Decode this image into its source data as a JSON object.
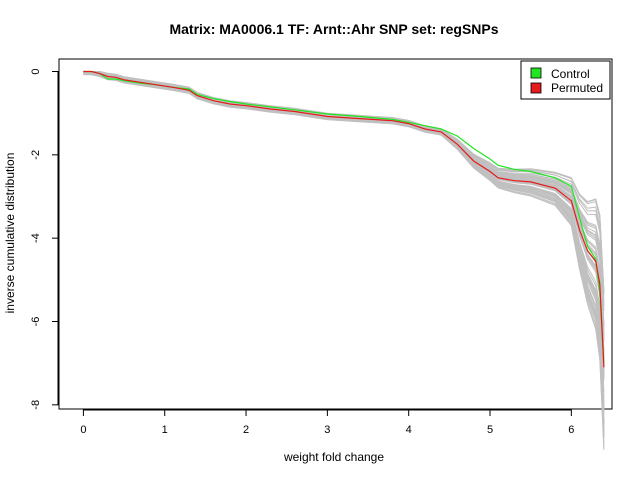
{
  "chart_data": {
    "type": "line",
    "title": "Matrix: MA0006.1 TF: Arnt::Ahr SNP set: regSNPs",
    "xlabel": "weight fold change",
    "ylabel": "inverse cumulative distribution",
    "xlim": [
      -0.3,
      6.5
    ],
    "ylim": [
      -8.1,
      0.3
    ],
    "x_ticks": [
      0,
      1,
      2,
      3,
      4,
      5,
      6
    ],
    "y_ticks": [
      0,
      -2,
      -4,
      -6,
      -8
    ],
    "grid": false,
    "legend": {
      "placement": "top-right",
      "entries": [
        {
          "label": "Control",
          "color": "#22e522"
        },
        {
          "label": "Permuted",
          "color": "#e61a1a"
        }
      ]
    },
    "background_series": {
      "color": "#c0c0c0",
      "count": 60,
      "description_values": "per-run permuted curves spanning the gray band"
    },
    "series": [
      {
        "name": "Control",
        "color": "#22e522",
        "x": [
          0,
          0.1,
          0.2,
          0.3,
          0.4,
          0.5,
          0.7,
          0.9,
          1.1,
          1.3,
          1.4,
          1.6,
          1.8,
          2.0,
          2.3,
          2.6,
          3.0,
          3.4,
          3.8,
          4.0,
          4.2,
          4.4,
          4.6,
          4.8,
          5.0,
          5.1,
          5.3,
          5.5,
          5.8,
          6.0,
          6.1,
          6.2,
          6.3,
          6.35,
          6.4
        ],
        "y": [
          0,
          0,
          -0.05,
          -0.18,
          -0.18,
          -0.22,
          -0.28,
          -0.32,
          -0.38,
          -0.42,
          -0.55,
          -0.65,
          -0.72,
          -0.78,
          -0.85,
          -0.92,
          -1.02,
          -1.08,
          -1.15,
          -1.22,
          -1.3,
          -1.38,
          -1.55,
          -1.85,
          -2.1,
          -2.25,
          -2.35,
          -2.4,
          -2.55,
          -2.75,
          -3.5,
          -4.2,
          -4.5,
          -5.3,
          -7.0
        ]
      },
      {
        "name": "Permuted",
        "color": "#e61a1a",
        "x": [
          0,
          0.1,
          0.2,
          0.3,
          0.4,
          0.5,
          0.7,
          0.9,
          1.1,
          1.3,
          1.4,
          1.6,
          1.8,
          2.0,
          2.3,
          2.6,
          3.0,
          3.4,
          3.8,
          4.0,
          4.2,
          4.4,
          4.6,
          4.8,
          5.0,
          5.1,
          5.3,
          5.5,
          5.8,
          6.0,
          6.1,
          6.2,
          6.3,
          6.35,
          6.4
        ],
        "y": [
          0,
          0,
          -0.05,
          -0.12,
          -0.14,
          -0.2,
          -0.26,
          -0.32,
          -0.38,
          -0.45,
          -0.58,
          -0.7,
          -0.78,
          -0.82,
          -0.9,
          -0.96,
          -1.08,
          -1.13,
          -1.18,
          -1.25,
          -1.38,
          -1.45,
          -1.75,
          -2.15,
          -2.4,
          -2.55,
          -2.62,
          -2.65,
          -2.8,
          -3.1,
          -3.8,
          -4.3,
          -4.55,
          -5.1,
          -7.1
        ]
      }
    ]
  }
}
